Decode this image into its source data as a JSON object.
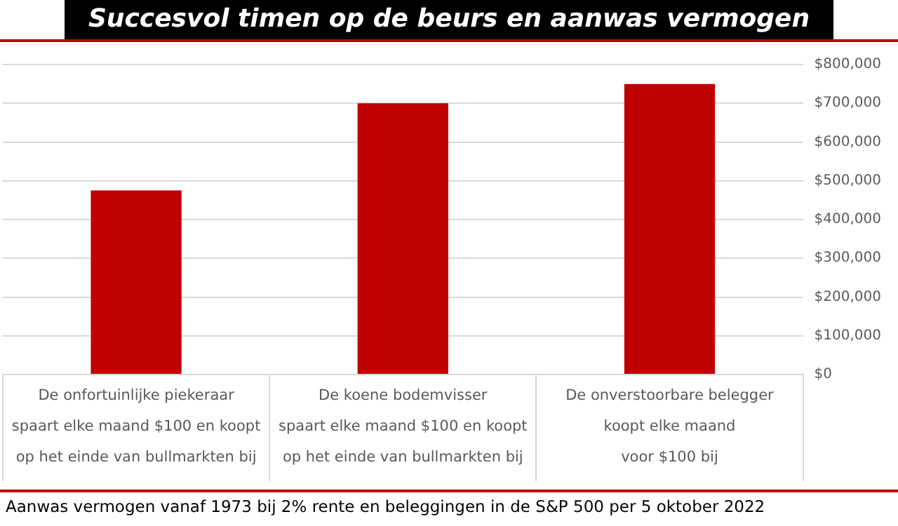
{
  "chart_data": {
    "type": "bar",
    "title": "Succesvol timen op de beurs en aanwas vermogen",
    "categories": [
      "De onfortuinlijke piekeraar\nspaart elke maand $100 en koopt\nop het einde van bullmarkten bij",
      "De koene bodemvisser\nspaart elke maand $100 en koopt\nop het einde van bullmarkten bij",
      "De onverstoorbare belegger\nkoopt elke maand\nvoor $100 bij"
    ],
    "values": [
      475000,
      700000,
      750000
    ],
    "color": "#c00000",
    "ylim": [
      0,
      800000
    ],
    "yticks": [
      {
        "value": 0,
        "label": "$0"
      },
      {
        "value": 100000,
        "label": "$100,000"
      },
      {
        "value": 200000,
        "label": "$200,000"
      },
      {
        "value": 300000,
        "label": "$300,000"
      },
      {
        "value": 400000,
        "label": "$400,000"
      },
      {
        "value": 500000,
        "label": "$500,000"
      },
      {
        "value": 600000,
        "label": "$600,000"
      },
      {
        "value": 700000,
        "label": "$700,000"
      },
      {
        "value": 800000,
        "label": "$800,000"
      }
    ],
    "grid": true,
    "legend": false,
    "annotations": [
      "Aanwas vermogen vanaf 1973 bij 2% rente en beleggingen in de S&P 500 per 5 oktober 2022"
    ]
  }
}
